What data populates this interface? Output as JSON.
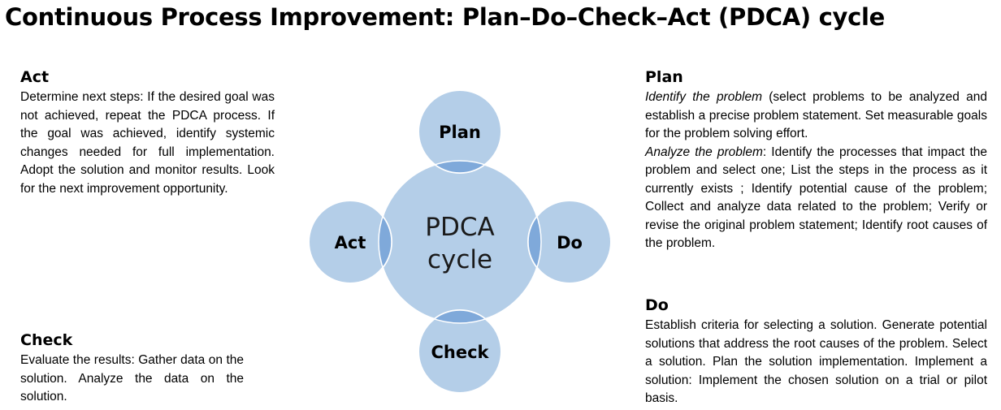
{
  "title": "Continuous Process Improvement: Plan–Do–Check–Act (PDCA) cycle",
  "diagram": {
    "center_line1": "PDCA",
    "center_line2": "cycle",
    "nodes": {
      "plan": "Plan",
      "do": "Do",
      "check": "Check",
      "act": "Act"
    },
    "colors": {
      "fill": "#b4cee8",
      "overlap": "#7fa9da",
      "stroke": "#ffffff"
    }
  },
  "act": {
    "heading": "Act",
    "text": "Determine next steps: If the desired goal was not achieved, repeat the PDCA process. If the goal was achieved, identify systemic changes needed for full implementation. Adopt the solution and monitor results.  Look for the next improvement opportunity."
  },
  "check": {
    "heading": "Check",
    "text": "Evaluate the results: Gather data on the solution. Analyze the data on the solution."
  },
  "plan": {
    "heading": "Plan",
    "identify_lead": "Identify the problem",
    "identify_text": " (select problems to be analyzed and establish a precise problem statement. Set measurable goals for the problem solving effort.",
    "analyze_lead": "Analyze the problem",
    "analyze_text": ": Identify the processes that impact the problem and select one; List the steps in the process as it currently exists ; Identify potential cause of the problem; Collect and analyze data related to the problem; Verify or revise the original problem statement; Identify root causes of the problem."
  },
  "do": {
    "heading": "Do",
    "text": "Establish criteria for selecting a solution. Generate potential solutions that address the root causes of the problem. Select a solution. Plan the solution implementation. Implement a solution: Implement the chosen solution on a trial or pilot basis."
  }
}
